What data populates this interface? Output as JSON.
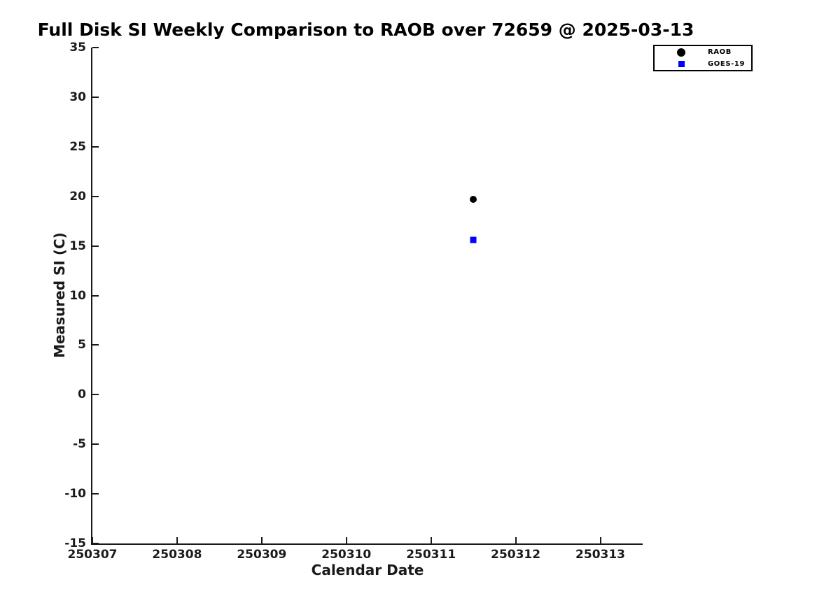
{
  "chart_data": {
    "type": "scatter",
    "title": "Full Disk SI Weekly Comparison to RAOB over 72659 @ 2025-03-13",
    "xlabel": "Calendar Date",
    "ylabel": "Measured SI (C)",
    "xlim": [
      250307,
      250313.5
    ],
    "ylim": [
      -15,
      35
    ],
    "x_ticks": [
      250307,
      250308,
      250309,
      250310,
      250311,
      250312,
      250313
    ],
    "x_tick_labels": [
      "250307",
      "250308",
      "250309",
      "250310",
      "250311",
      "250312",
      "250313"
    ],
    "y_ticks": [
      -15,
      -10,
      -5,
      0,
      5,
      10,
      15,
      20,
      25,
      30,
      35
    ],
    "y_tick_labels": [
      "-15",
      "-10",
      "-5",
      "0",
      "5",
      "10",
      "15",
      "20",
      "25",
      "30",
      "35"
    ],
    "grid": false,
    "legend_position": "outside-top-right",
    "axis_color": "#1a1a1a",
    "background_color": "#ffffff",
    "series": [
      {
        "name": "RAOB",
        "marker": "circle",
        "color": "#000000",
        "points": [
          {
            "x": 250311.5,
            "y": 19.7
          }
        ]
      },
      {
        "name": "GOES-19",
        "marker": "square",
        "color": "#0000ff",
        "points": [
          {
            "x": 250311.5,
            "y": 15.6
          }
        ]
      }
    ]
  }
}
